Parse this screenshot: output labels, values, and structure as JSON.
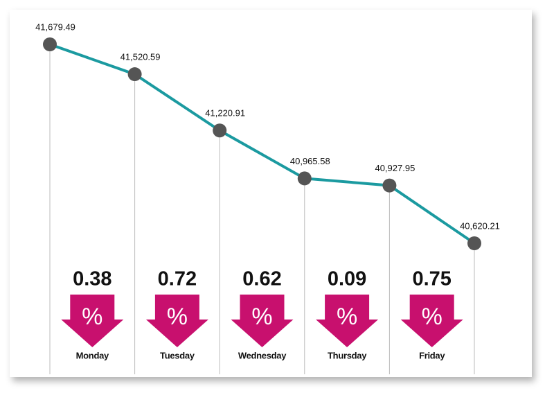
{
  "chart_data": {
    "type": "line",
    "values": [
      41679.49,
      41520.59,
      41220.91,
      40965.58,
      40927.95,
      40620.21
    ],
    "value_labels": [
      "41,679.49",
      "41,520.59",
      "41,220.91",
      "40,965.58",
      "40,927.95",
      "40,620.21"
    ],
    "color": "#1b9aa0",
    "marker_color": "#555555",
    "changes": {
      "categories": [
        "Monday",
        "Tuesday",
        "Wednesday",
        "Thursday",
        "Friday"
      ],
      "values": [
        0.38,
        0.72,
        0.62,
        0.09,
        0.75
      ],
      "symbol": "%",
      "color": "#c8106e"
    }
  }
}
